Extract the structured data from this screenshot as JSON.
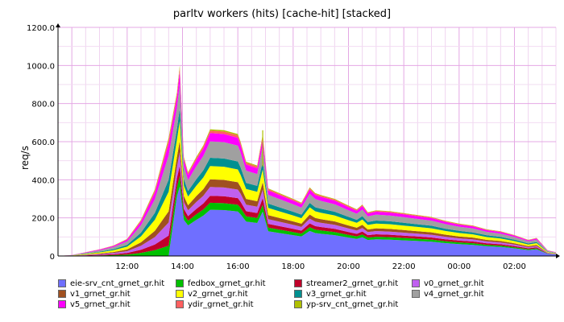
{
  "chart_data": {
    "type": "area",
    "stacked": true,
    "title": "parltv workers (hits) [cache-hit] [stacked]",
    "ylabel": "req/s",
    "xlabel": "",
    "ylim": [
      0,
      1200
    ],
    "y_ticks": [
      "0",
      "200.0",
      "400.0",
      "600.0",
      "800.0",
      "1000.0",
      "1200.0"
    ],
    "x_range_hours": [
      9.5,
      27.5
    ],
    "x_ticks": [
      {
        "h": 12,
        "label": "12:00"
      },
      {
        "h": 14,
        "label": "14:00"
      },
      {
        "h": 16,
        "label": "16:00"
      },
      {
        "h": 18,
        "label": "18:00"
      },
      {
        "h": 20,
        "label": "20:00"
      },
      {
        "h": 22,
        "label": "22:00"
      },
      {
        "h": 24,
        "label": "00:00"
      },
      {
        "h": 26,
        "label": "02:00"
      }
    ],
    "grid": true,
    "legend_position": "bottom",
    "total": {
      "x_hours": [
        9.5,
        10,
        10.5,
        11,
        11.5,
        12,
        12.5,
        13,
        13.5,
        13.8,
        13.9,
        14.05,
        14.2,
        14.5,
        14.75,
        15,
        15.5,
        16,
        16.1,
        16.3,
        16.7,
        16.9,
        17.1,
        17.5,
        18,
        18.3,
        18.6,
        18.8,
        19,
        19.5,
        20,
        20.3,
        20.5,
        20.7,
        21,
        21.5,
        22,
        22.5,
        23,
        23.5,
        24,
        24.5,
        25,
        25.5,
        26,
        26.5,
        26.8,
        27.2,
        27.5
      ],
      "values": [
        0,
        5,
        20,
        35,
        55,
        90,
        190,
        350,
        620,
        860,
        1000,
        520,
        440,
        520,
        580,
        665,
        660,
        640,
        600,
        495,
        475,
        640,
        355,
        330,
        300,
        280,
        360,
        330,
        320,
        300,
        265,
        245,
        270,
        230,
        240,
        235,
        225,
        215,
        205,
        185,
        170,
        160,
        140,
        130,
        110,
        85,
        95,
        30,
        20
      ]
    },
    "series": [
      {
        "name": "eie-srv_cnt_grnet_gr.hit",
        "color": "#6f6fff",
        "share": 0.365,
        "start_hour": 13.75
      },
      {
        "name": "fedbox_grnet_gr.hit",
        "color": "#00c000",
        "share": 0.055
      },
      {
        "name": "streamer2_grnet_gr.hit",
        "color": "#c0002a",
        "share": 0.055
      },
      {
        "name": "v0_grnet_gr.hit",
        "color": "#c060f0",
        "share": 0.07
      },
      {
        "name": "v1_grnet_gr.hit",
        "color": "#a05020",
        "share": 0.06
      },
      {
        "name": "v2_grnet_gr.hit",
        "color": "#ffff00",
        "share": 0.105
      },
      {
        "name": "v3_grnet_gr.hit",
        "color": "#009090",
        "share": 0.065
      },
      {
        "name": "v4_grnet_gr.hit",
        "color": "#a0a0a0",
        "share": 0.13
      },
      {
        "name": "v5_grnet_gr.hit",
        "color": "#ff00ff",
        "share": 0.065
      },
      {
        "name": "ydir_grnet_gr.hit",
        "color": "#ff6060",
        "share": 0.02
      },
      {
        "name": "yp-srv_cnt_grnet_gr.hit",
        "color": "#b0c000",
        "share": 0.01
      }
    ]
  }
}
